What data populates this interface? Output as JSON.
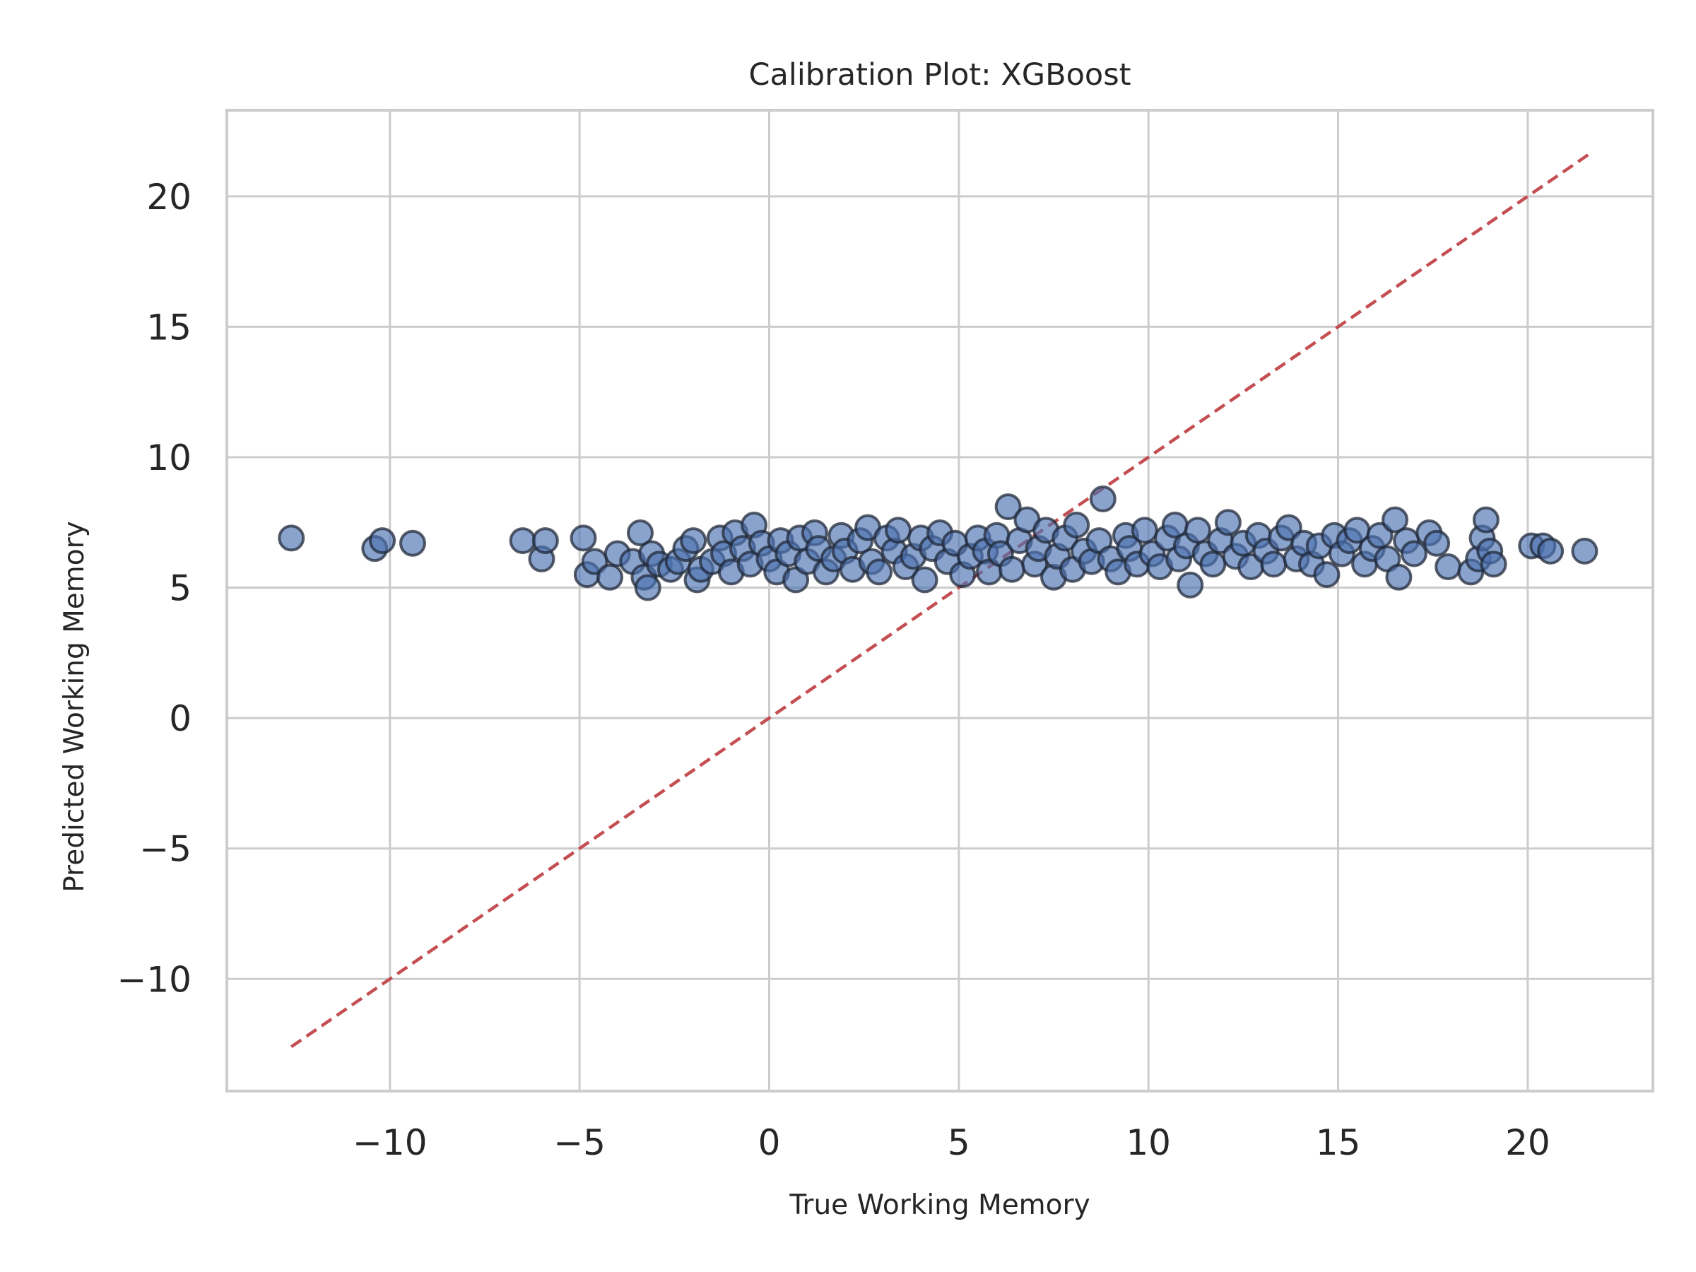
{
  "chart_data": {
    "type": "scatter",
    "title": "Calibration Plot: XGBoost",
    "xlabel": "True Working Memory",
    "ylabel": "Predicted Working Memory",
    "xlim": [
      -14.3,
      23.3
    ],
    "ylim": [
      -14.3,
      23.3
    ],
    "xticks": [
      -10,
      -5,
      0,
      5,
      10,
      15,
      20
    ],
    "yticks": [
      -10,
      -5,
      0,
      5,
      10,
      15,
      20
    ],
    "xtick_labels": [
      "−10",
      "−5",
      "0",
      "5",
      "10",
      "15",
      "20"
    ],
    "ytick_labels": [
      "−10",
      "−5",
      "0",
      "5",
      "10",
      "15",
      "20"
    ],
    "grid": true,
    "legend": "none",
    "colors": {
      "points": "#4c72b0",
      "edge": "#222a3a",
      "reference": "#c44e52",
      "grid": "#cccccc"
    },
    "reference_line": {
      "style": "dashed",
      "x": [
        -12.6,
        21.6
      ],
      "y": [
        -12.6,
        21.6
      ]
    },
    "series": [
      {
        "points": [
          [
            -12.6,
            6.9
          ],
          [
            -10.4,
            6.5
          ],
          [
            -10.2,
            6.8
          ],
          [
            -9.4,
            6.7
          ],
          [
            -6.5,
            6.8
          ],
          [
            -6.0,
            6.1
          ],
          [
            -5.9,
            6.8
          ],
          [
            -4.9,
            6.9
          ],
          [
            -4.8,
            5.5
          ],
          [
            -4.6,
            6.0
          ],
          [
            -4.2,
            5.4
          ],
          [
            -4.0,
            6.3
          ],
          [
            -3.6,
            6.0
          ],
          [
            -3.4,
            7.1
          ],
          [
            -3.3,
            5.4
          ],
          [
            -3.2,
            5.0
          ],
          [
            -3.1,
            6.3
          ],
          [
            -2.9,
            5.9
          ],
          [
            -2.6,
            5.7
          ],
          [
            -2.4,
            6.0
          ],
          [
            -2.2,
            6.5
          ],
          [
            -2.0,
            6.8
          ],
          [
            -1.9,
            5.3
          ],
          [
            -1.8,
            5.7
          ],
          [
            -1.5,
            6.0
          ],
          [
            -1.3,
            6.9
          ],
          [
            -1.2,
            6.3
          ],
          [
            -1.0,
            5.6
          ],
          [
            -0.9,
            7.1
          ],
          [
            -0.7,
            6.5
          ],
          [
            -0.5,
            5.9
          ],
          [
            -0.4,
            7.4
          ],
          [
            -0.2,
            6.7
          ],
          [
            0.0,
            6.1
          ],
          [
            0.2,
            5.6
          ],
          [
            0.3,
            6.8
          ],
          [
            0.5,
            6.3
          ],
          [
            0.7,
            5.3
          ],
          [
            0.8,
            6.9
          ],
          [
            1.0,
            6.0
          ],
          [
            1.2,
            7.1
          ],
          [
            1.3,
            6.5
          ],
          [
            1.5,
            5.6
          ],
          [
            1.7,
            6.1
          ],
          [
            1.9,
            7.0
          ],
          [
            2.0,
            6.4
          ],
          [
            2.2,
            5.7
          ],
          [
            2.4,
            6.8
          ],
          [
            2.6,
            7.3
          ],
          [
            2.7,
            6.0
          ],
          [
            2.9,
            5.6
          ],
          [
            3.1,
            6.9
          ],
          [
            3.3,
            6.4
          ],
          [
            3.4,
            7.2
          ],
          [
            3.6,
            5.8
          ],
          [
            3.8,
            6.2
          ],
          [
            4.0,
            6.9
          ],
          [
            4.1,
            5.3
          ],
          [
            4.3,
            6.5
          ],
          [
            4.5,
            7.1
          ],
          [
            4.7,
            6.0
          ],
          [
            4.9,
            6.7
          ],
          [
            5.1,
            5.5
          ],
          [
            5.3,
            6.2
          ],
          [
            5.5,
            6.9
          ],
          [
            5.7,
            6.4
          ],
          [
            5.8,
            5.6
          ],
          [
            6.0,
            7.0
          ],
          [
            6.1,
            6.3
          ],
          [
            6.3,
            8.1
          ],
          [
            6.4,
            5.7
          ],
          [
            6.6,
            6.8
          ],
          [
            6.8,
            7.6
          ],
          [
            7.0,
            5.9
          ],
          [
            7.1,
            6.5
          ],
          [
            7.3,
            7.2
          ],
          [
            7.5,
            5.4
          ],
          [
            7.6,
            6.2
          ],
          [
            7.8,
            6.9
          ],
          [
            8.0,
            5.7
          ],
          [
            8.1,
            7.4
          ],
          [
            8.3,
            6.4
          ],
          [
            8.5,
            6.0
          ],
          [
            8.7,
            6.8
          ],
          [
            8.8,
            8.4
          ],
          [
            9.0,
            6.1
          ],
          [
            9.2,
            5.6
          ],
          [
            9.4,
            7.0
          ],
          [
            9.5,
            6.5
          ],
          [
            9.7,
            5.9
          ],
          [
            9.9,
            7.2
          ],
          [
            10.1,
            6.3
          ],
          [
            10.3,
            5.8
          ],
          [
            10.5,
            6.9
          ],
          [
            10.7,
            7.4
          ],
          [
            10.8,
            6.1
          ],
          [
            11.0,
            6.6
          ],
          [
            11.1,
            5.1
          ],
          [
            11.3,
            7.2
          ],
          [
            11.5,
            6.3
          ],
          [
            11.7,
            5.9
          ],
          [
            11.9,
            6.8
          ],
          [
            12.1,
            7.5
          ],
          [
            12.3,
            6.2
          ],
          [
            12.5,
            6.7
          ],
          [
            12.7,
            5.8
          ],
          [
            12.9,
            7.0
          ],
          [
            13.1,
            6.4
          ],
          [
            13.3,
            5.9
          ],
          [
            13.5,
            6.9
          ],
          [
            13.7,
            7.3
          ],
          [
            13.9,
            6.1
          ],
          [
            14.1,
            6.7
          ],
          [
            14.3,
            5.9
          ],
          [
            14.5,
            6.6
          ],
          [
            14.7,
            5.5
          ],
          [
            14.9,
            7.0
          ],
          [
            15.1,
            6.3
          ],
          [
            15.3,
            6.8
          ],
          [
            15.5,
            7.2
          ],
          [
            15.7,
            5.9
          ],
          [
            15.9,
            6.5
          ],
          [
            16.1,
            7.0
          ],
          [
            16.3,
            6.1
          ],
          [
            16.5,
            7.6
          ],
          [
            16.6,
            5.4
          ],
          [
            16.8,
            6.8
          ],
          [
            17.0,
            6.3
          ],
          [
            17.4,
            7.1
          ],
          [
            17.6,
            6.7
          ],
          [
            17.9,
            5.8
          ],
          [
            18.5,
            5.6
          ],
          [
            18.7,
            6.1
          ],
          [
            18.8,
            6.9
          ],
          [
            18.9,
            7.6
          ],
          [
            19.0,
            6.4
          ],
          [
            19.1,
            5.9
          ],
          [
            20.1,
            6.6
          ],
          [
            20.4,
            6.6
          ],
          [
            20.6,
            6.4
          ],
          [
            21.5,
            6.4
          ]
        ]
      }
    ]
  }
}
